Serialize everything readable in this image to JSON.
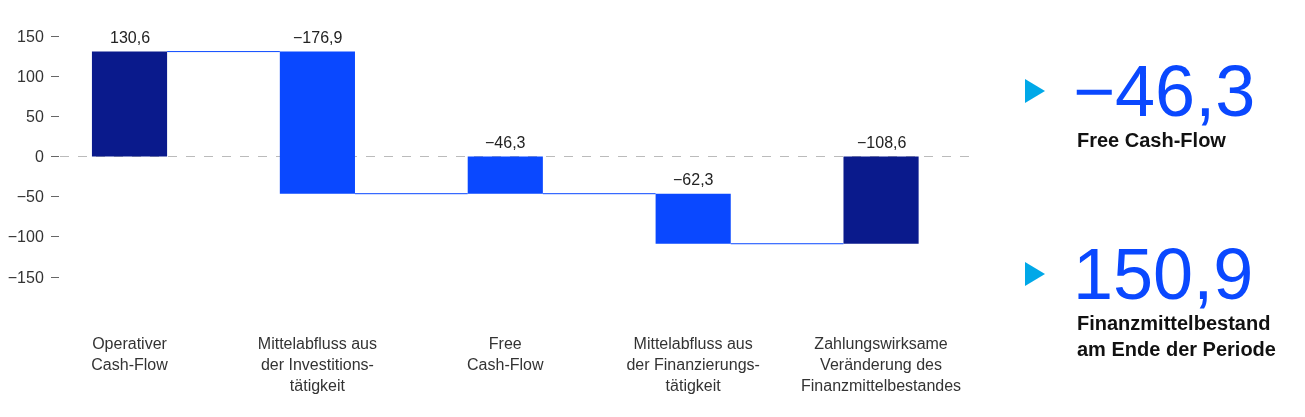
{
  "chart_data": {
    "type": "bar",
    "categories": [
      "Operativer\nCash-Flow",
      "Mittelabfluss aus\nder Investitions-\ntätigkeit",
      "Free\nCash-Flow",
      "Mittelabfluss aus\nder Finanzierungs-\ntätigkeit",
      "Zahlungswirksame\nVeränderung des\nFinanzmittelbestandes"
    ],
    "values": [
      130.6,
      -176.9,
      -46.3,
      -62.3,
      -108.6
    ],
    "base": [
      0,
      130.6,
      0,
      -46.3,
      0
    ],
    "colors": [
      "#0a1a8c",
      "#0a48ff",
      "#0a48ff",
      "#0a48ff",
      "#0a1a8c"
    ],
    "value_labels": [
      "130,6",
      "−176,9",
      "−46,3",
      "−62,3",
      "−108,6"
    ],
    "ylim": [
      -150,
      150
    ],
    "yticks": [
      {
        "value": -150,
        "label": "−150"
      },
      {
        "value": -100,
        "label": "−100"
      },
      {
        "value": -50,
        "label": "−50"
      },
      0,
      50,
      100,
      150
    ],
    "ref_lines": [
      {
        "axis": "y",
        "value": 0,
        "color": "#bbbbbb",
        "line_style": "dashed"
      }
    ],
    "annotations": [
      "−46,3",
      "Free Cash-Flow",
      "150,9",
      "Finanzmittelbestand\nam Ende der Periode"
    ]
  }
}
